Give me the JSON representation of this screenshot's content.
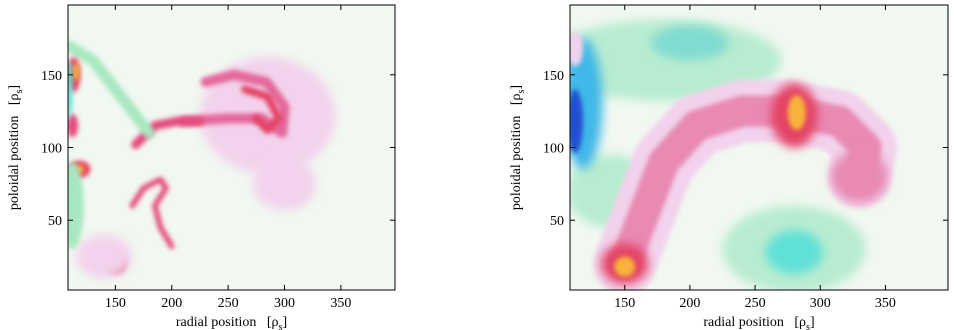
{
  "chart_data": [
    {
      "type": "heatmap",
      "xlabel": "radial position",
      "xunit": "[ρ",
      "xunit_sub": "s",
      "xunit_close": "]",
      "ylabel": "poloidal position",
      "yunit": "[ρ",
      "yunit_sub": "s",
      "yunit_close": "]",
      "xlim": [
        108,
        398
      ],
      "ylim": [
        2,
        198
      ],
      "xticks": [
        150,
        200,
        250,
        300,
        350
      ],
      "yticks": [
        50,
        100,
        150
      ],
      "grid": false,
      "background_color": "#f1f8f1",
      "features": [
        {
          "shape": "blob",
          "x": 285,
          "y": 122,
          "rx": 60,
          "ry": 40,
          "color": "#f2d2ec"
        },
        {
          "shape": "blob",
          "x": 300,
          "y": 75,
          "rx": 28,
          "ry": 18,
          "color": "#f2d2ec"
        },
        {
          "shape": "stroke",
          "points": [
            [
              210,
              118
            ],
            [
              250,
              120
            ],
            [
              280,
              120
            ],
            [
              298,
              110
            ],
            [
              300,
              128
            ],
            [
              284,
              145
            ],
            [
              255,
              150
            ],
            [
              230,
              145
            ]
          ],
          "width": 9,
          "color": "#e5679b"
        },
        {
          "shape": "stroke",
          "points": [
            [
              265,
              140
            ],
            [
              285,
              135
            ],
            [
              295,
              120
            ],
            [
              285,
              112
            ],
            [
              275,
              120
            ]
          ],
          "width": 7,
          "color": "#e44365"
        },
        {
          "shape": "stroke",
          "points": [
            [
              168,
              102
            ],
            [
              185,
              115
            ],
            [
              205,
              118
            ],
            [
              225,
              118
            ]
          ],
          "width": 8,
          "color": "#e44c7e"
        },
        {
          "shape": "stroke",
          "points": [
            [
              165,
              60
            ],
            [
              175,
              72
            ],
            [
              190,
              78
            ],
            [
              195,
              72
            ],
            [
              185,
              60
            ],
            [
              190,
              45
            ],
            [
              200,
              32
            ]
          ],
          "width": 5,
          "color": "#e44c7e"
        },
        {
          "shape": "stroke",
          "points": [
            [
              108,
              170
            ],
            [
              130,
              160
            ],
            [
              160,
              130
            ],
            [
              180,
              110
            ]
          ],
          "width": 10,
          "color": "#a8e8c0"
        },
        {
          "shape": "blob",
          "x": 113,
          "y": 150,
          "rx": 6,
          "ry": 12,
          "color": "#e44365"
        },
        {
          "shape": "blob",
          "x": 115,
          "y": 152,
          "rx": 3,
          "ry": 6,
          "color": "#f7b33a"
        },
        {
          "shape": "blob",
          "x": 118,
          "y": 85,
          "rx": 10,
          "ry": 6,
          "color": "#e44365"
        },
        {
          "shape": "blob",
          "x": 118,
          "y": 85,
          "rx": 4,
          "ry": 3,
          "color": "#f7b33a"
        },
        {
          "shape": "blob",
          "x": 112,
          "y": 115,
          "rx": 5,
          "ry": 8,
          "color": "#e44c7e"
        },
        {
          "shape": "blob",
          "x": 150,
          "y": 20,
          "rx": 10,
          "ry": 7,
          "color": "#e44365"
        },
        {
          "shape": "blob",
          "x": 140,
          "y": 25,
          "rx": 25,
          "ry": 15,
          "color": "#f2d2ec"
        },
        {
          "shape": "blob",
          "x": 112,
          "y": 60,
          "rx": 10,
          "ry": 30,
          "color": "#a8e8c0"
        },
        {
          "shape": "blob",
          "x": 109,
          "y": 140,
          "rx": 3,
          "ry": 20,
          "color": "#60e0d8"
        }
      ]
    },
    {
      "type": "heatmap",
      "xlabel": "radial position",
      "xunit": "[ρ",
      "xunit_sub": "s",
      "xunit_close": "]",
      "ylabel": "poloidal position",
      "yunit": "[ρ",
      "yunit_sub": "s",
      "yunit_close": "]",
      "xlim": [
        108,
        398
      ],
      "ylim": [
        2,
        198
      ],
      "xticks": [
        150,
        200,
        250,
        300,
        350
      ],
      "yticks": [
        50,
        100,
        150
      ],
      "grid": false,
      "background_color": "#f1f8f1",
      "features": [
        {
          "shape": "blob",
          "x": 180,
          "y": 160,
          "rx": 90,
          "ry": 28,
          "color": "#b8ecd0"
        },
        {
          "shape": "blob",
          "x": 280,
          "y": 30,
          "rx": 55,
          "ry": 30,
          "color": "#b8ecd0"
        },
        {
          "shape": "blob",
          "x": 140,
          "y": 70,
          "rx": 35,
          "ry": 25,
          "color": "#b8ecd0"
        },
        {
          "shape": "blob",
          "x": 280,
          "y": 28,
          "rx": 22,
          "ry": 15,
          "color": "#60e0d8"
        },
        {
          "shape": "blob",
          "x": 200,
          "y": 172,
          "rx": 30,
          "ry": 12,
          "color": "#80dcd0"
        },
        {
          "shape": "blob",
          "x": 118,
          "y": 130,
          "rx": 15,
          "ry": 45,
          "color": "#40b8e8"
        },
        {
          "shape": "blob",
          "x": 112,
          "y": 118,
          "rx": 6,
          "ry": 22,
          "color": "#2050d0"
        },
        {
          "shape": "stroke",
          "points": [
            [
              150,
              20
            ],
            [
              165,
              55
            ],
            [
              180,
              90
            ],
            [
              205,
              115
            ],
            [
              240,
              125
            ],
            [
              275,
              125
            ],
            [
              315,
              118
            ],
            [
              335,
              100
            ],
            [
              330,
              80
            ]
          ],
          "width": 48,
          "color": "#f2d2ec"
        },
        {
          "shape": "stroke",
          "points": [
            [
              150,
              20
            ],
            [
              165,
              55
            ],
            [
              180,
              90
            ],
            [
              205,
              115
            ],
            [
              240,
              125
            ],
            [
              275,
              125
            ],
            [
              315,
              118
            ],
            [
              335,
              100
            ],
            [
              330,
              80
            ]
          ],
          "width": 24,
          "color": "#e88ab4"
        },
        {
          "shape": "blob",
          "x": 280,
          "y": 122,
          "rx": 18,
          "ry": 22,
          "color": "#e44365"
        },
        {
          "shape": "blob",
          "x": 282,
          "y": 124,
          "rx": 7,
          "ry": 12,
          "color": "#f7b33a"
        },
        {
          "shape": "blob",
          "x": 150,
          "y": 20,
          "rx": 18,
          "ry": 14,
          "color": "#e44365"
        },
        {
          "shape": "blob",
          "x": 150,
          "y": 18,
          "rx": 8,
          "ry": 7,
          "color": "#f7b33a"
        },
        {
          "shape": "blob",
          "x": 330,
          "y": 80,
          "rx": 22,
          "ry": 18,
          "color": "#e88ab4"
        },
        {
          "shape": "blob",
          "x": 112,
          "y": 168,
          "rx": 6,
          "ry": 12,
          "color": "#f2d2ec"
        }
      ]
    }
  ]
}
